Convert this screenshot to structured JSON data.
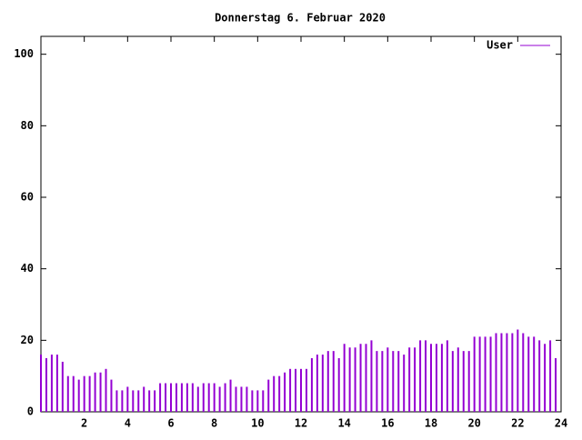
{
  "chart_data": {
    "type": "impulses",
    "title": "Donnerstag 6. Februar 2020",
    "xlim": [
      0,
      24
    ],
    "xticks": [
      2,
      4,
      6,
      8,
      10,
      12,
      14,
      16,
      18,
      20,
      22,
      24
    ],
    "ylim": [
      0,
      105
    ],
    "yticks": [
      0,
      20,
      40,
      60,
      80,
      100
    ],
    "x": [
      0,
      0.25,
      0.5,
      0.75,
      1,
      1.25,
      1.5,
      1.75,
      2,
      2.25,
      2.5,
      2.75,
      3,
      3.25,
      3.5,
      3.75,
      4,
      4.25,
      4.5,
      4.75,
      5,
      5.25,
      5.5,
      5.75,
      6,
      6.25,
      6.5,
      6.75,
      7,
      7.25,
      7.5,
      7.75,
      8,
      8.25,
      8.5,
      8.75,
      9,
      9.25,
      9.5,
      9.75,
      10,
      10.25,
      10.5,
      10.75,
      11,
      11.25,
      11.5,
      11.75,
      12,
      12.25,
      12.5,
      12.75,
      13,
      13.25,
      13.5,
      13.75,
      14,
      14.25,
      14.5,
      14.75,
      15,
      15.25,
      15.5,
      15.75,
      16,
      16.25,
      16.5,
      16.75,
      17,
      17.25,
      17.5,
      17.75,
      18,
      18.25,
      18.5,
      18.75,
      19,
      19.25,
      19.5,
      19.75,
      20,
      20.25,
      20.5,
      20.75,
      21,
      21.25,
      21.5,
      21.75,
      22,
      22.25,
      22.5,
      22.75,
      23,
      23.25,
      23.5,
      23.75
    ],
    "series": [
      {
        "name": "User",
        "color": "#9400d3",
        "values": [
          16,
          15,
          16,
          16,
          14,
          10,
          10,
          9,
          10,
          10,
          11,
          11,
          12,
          9,
          6,
          6,
          7,
          6,
          6,
          7,
          6,
          6,
          8,
          8,
          8,
          8,
          8,
          8,
          8,
          7,
          8,
          8,
          8,
          7,
          8,
          9,
          7,
          7,
          7,
          6,
          6,
          6,
          9,
          10,
          10,
          11,
          12,
          12,
          12,
          12,
          15,
          16,
          16,
          17,
          17,
          15,
          19,
          18,
          18,
          19,
          19,
          20,
          17,
          17,
          18,
          17,
          17,
          16,
          18,
          18,
          20,
          20,
          19,
          19,
          19,
          20,
          17,
          18,
          17,
          17,
          21,
          21,
          21,
          21,
          22,
          22,
          22,
          22,
          23,
          22,
          21,
          21,
          20,
          19,
          20,
          15
        ]
      }
    ],
    "legend": "top-right",
    "grid": false
  }
}
